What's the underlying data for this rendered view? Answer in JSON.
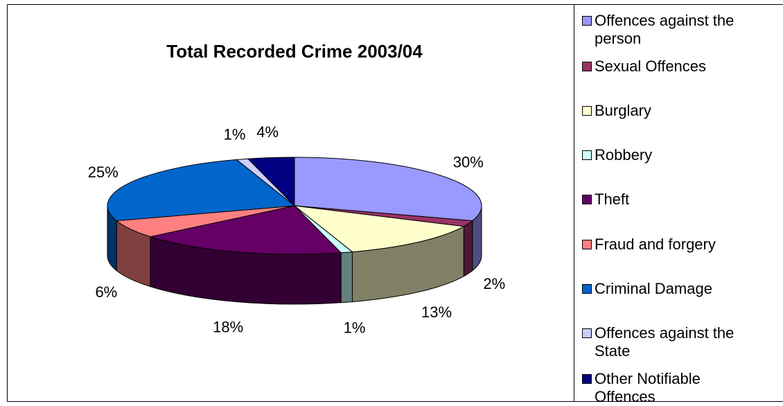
{
  "chart_data": {
    "type": "pie",
    "title": "Total Recorded Crime 2003/04",
    "legend_position": "right",
    "slices": [
      {
        "label": "Offences against the person",
        "value": 30,
        "value_label": "30%",
        "color": "#9999FF",
        "side_color": "#4D4D80"
      },
      {
        "label": "Sexual Offences",
        "value": 2,
        "value_label": "2%",
        "color": "#993366",
        "side_color": "#4D1A33"
      },
      {
        "label": "Burglary",
        "value": 13,
        "value_label": "13%",
        "color": "#FFFFCC",
        "side_color": "#808066"
      },
      {
        "label": "Robbery",
        "value": 1,
        "value_label": "1%",
        "color": "#CCFFFF",
        "side_color": "#668080"
      },
      {
        "label": "Theft",
        "value": 18,
        "value_label": "18%",
        "color": "#660066",
        "side_color": "#330033"
      },
      {
        "label": "Fraud and forgery",
        "value": 6,
        "value_label": "6%",
        "color": "#FF8080",
        "side_color": "#804040"
      },
      {
        "label": "Criminal Damage",
        "value": 25,
        "value_label": "25%",
        "color": "#0066CC",
        "side_color": "#003366"
      },
      {
        "label": "Offences against the State",
        "value": 1,
        "value_label": "1%",
        "color": "#CCCCFF",
        "side_color": "#666680"
      },
      {
        "label": "Other Notifiable Offences",
        "value": 4,
        "value_label": "4%",
        "color": "#000080",
        "side_color": "#000040"
      }
    ]
  },
  "legend": {
    "items": [
      {
        "text_line1": "Offences against the",
        "text_line2": "person"
      },
      {
        "text_line1": "Sexual Offences",
        "text_line2": ""
      },
      {
        "text_line1": "Burglary",
        "text_line2": ""
      },
      {
        "text_line1": "Robbery",
        "text_line2": ""
      },
      {
        "text_line1": "Theft",
        "text_line2": ""
      },
      {
        "text_line1": "Fraud and forgery",
        "text_line2": ""
      },
      {
        "text_line1": "Criminal Damage",
        "text_line2": ""
      },
      {
        "text_line1": "Offences against the",
        "text_line2": "State"
      },
      {
        "text_line1": "Other Notifiable",
        "text_line2": "Offences"
      }
    ]
  }
}
